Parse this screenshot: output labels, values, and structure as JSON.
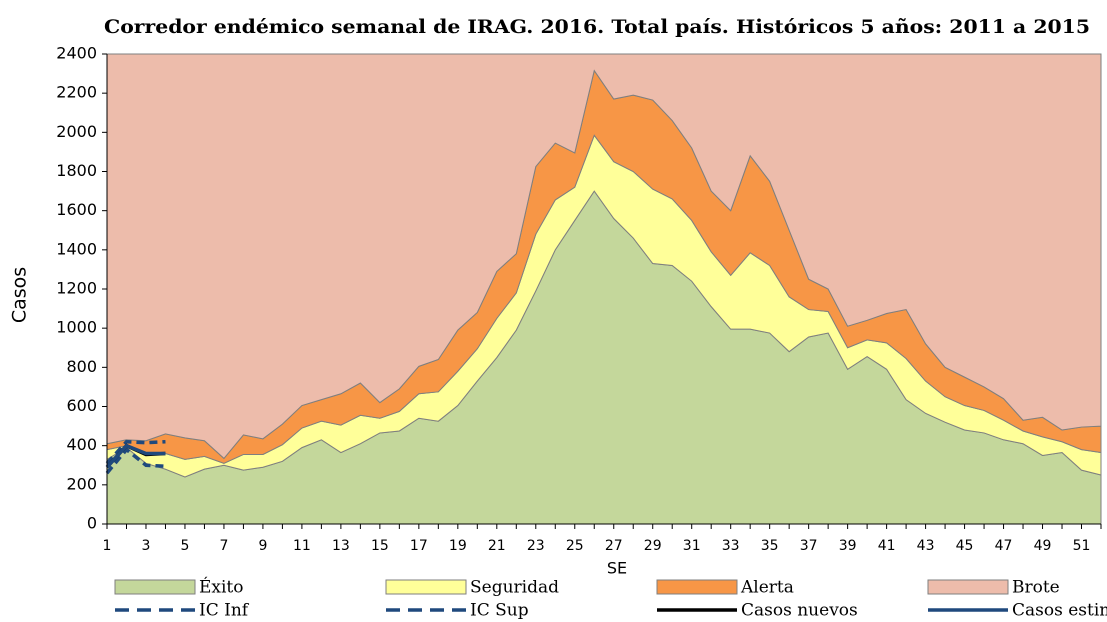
{
  "chart_data": {
    "type": "stacked_area",
    "title": "Corredor endémico semanal de IRAG. 2016. Total país. Históricos 5 años: 2011 a 2015",
    "x_label": "SE",
    "y_label": "Casos",
    "categories": [
      1,
      null,
      3,
      null,
      5,
      null,
      7,
      null,
      9,
      null,
      11,
      null,
      13,
      null,
      15,
      null,
      17,
      null,
      19,
      null,
      21,
      null,
      23,
      null,
      25,
      null,
      27,
      null,
      29,
      null,
      31,
      null,
      33,
      null,
      35,
      null,
      37,
      null,
      39,
      null,
      41,
      null,
      43,
      null,
      45,
      null,
      47,
      null,
      49,
      null,
      51,
      null
    ],
    "ylim": [
      0,
      2400
    ],
    "yticks": [
      0,
      200,
      400,
      600,
      800,
      1000,
      1200,
      1400,
      1600,
      1800,
      2000,
      2200,
      2400
    ],
    "series": [
      {
        "name": "Éxito",
        "color": "#c4d79b",
        "kind": "area",
        "values": [
          330,
          390,
          310,
          280,
          240,
          280,
          300,
          275,
          290,
          320,
          390,
          430,
          365,
          410,
          465,
          475,
          540,
          525,
          605,
          730,
          850,
          990,
          1190,
          1400,
          1550,
          1700,
          1560,
          1460,
          1330,
          1320,
          1240,
          1110,
          995,
          995,
          975,
          880,
          955,
          975,
          790,
          855,
          790,
          635,
          565,
          520,
          480,
          465,
          430,
          410,
          350,
          365,
          275,
          250
        ]
      },
      {
        "name": "Seguridad",
        "color": "#ffff99",
        "kind": "area",
        "values": [
          50,
          10,
          50,
          80,
          90,
          65,
          10,
          80,
          65,
          85,
          100,
          95,
          140,
          145,
          75,
          100,
          125,
          150,
          175,
          165,
          200,
          190,
          290,
          255,
          170,
          285,
          290,
          340,
          380,
          340,
          310,
          280,
          275,
          390,
          345,
          280,
          140,
          110,
          110,
          85,
          135,
          210,
          165,
          130,
          125,
          115,
          100,
          65,
          95,
          55,
          105,
          115
        ]
      },
      {
        "name": "Alerta",
        "color": "#f79646",
        "kind": "area",
        "values": [
          30,
          30,
          65,
          100,
          110,
          80,
          25,
          100,
          80,
          105,
          115,
          110,
          160,
          165,
          80,
          115,
          140,
          165,
          210,
          185,
          240,
          200,
          345,
          290,
          175,
          330,
          320,
          390,
          455,
          400,
          370,
          310,
          330,
          495,
          430,
          340,
          155,
          115,
          110,
          100,
          150,
          250,
          190,
          150,
          145,
          120,
          110,
          55,
          100,
          60,
          115,
          135
        ]
      },
      {
        "name": "Brote",
        "color": "#edbcab",
        "kind": "area",
        "values": [
          1990,
          1970,
          1975,
          1940,
          1960,
          1975,
          2065,
          1945,
          1965,
          1890,
          1795,
          1765,
          1735,
          1680,
          1780,
          1710,
          1595,
          1560,
          1410,
          1320,
          1110,
          1020,
          575,
          455,
          505,
          85,
          230,
          210,
          235,
          340,
          480,
          700,
          800,
          520,
          650,
          900,
          1150,
          1200,
          1390,
          1360,
          1325,
          1305,
          1480,
          1600,
          1650,
          1700,
          1760,
          1870,
          1855,
          1920,
          1905,
          1900
        ]
      },
      {
        "name": "IC Inf",
        "color": "#1f497d",
        "kind": "line",
        "style": "dashed",
        "values": [
          260,
          380,
          300,
          295,
          null,
          null,
          null,
          null,
          null,
          null,
          null,
          null,
          null,
          null,
          null,
          null,
          null,
          null,
          null,
          null,
          null,
          null,
          null,
          null,
          null,
          null,
          null,
          null,
          null,
          null,
          null,
          null,
          null,
          null,
          null,
          null,
          null,
          null,
          null,
          null,
          null,
          null,
          null,
          null,
          null,
          null,
          null,
          null,
          null,
          null,
          null,
          null
        ]
      },
      {
        "name": "IC Sup",
        "color": "#1f497d",
        "kind": "line",
        "style": "dashed",
        "values": [
          310,
          420,
          415,
          420,
          null,
          null,
          null,
          null,
          null,
          null,
          null,
          null,
          null,
          null,
          null,
          null,
          null,
          null,
          null,
          null,
          null,
          null,
          null,
          null,
          null,
          null,
          null,
          null,
          null,
          null,
          null,
          null,
          null,
          null,
          null,
          null,
          null,
          null,
          null,
          null,
          null,
          null,
          null,
          null,
          null,
          null,
          null,
          null,
          null,
          null,
          null,
          null
        ]
      },
      {
        "name": "Casos nuevos",
        "color": "#000000",
        "kind": "line",
        "style": "solid",
        "values": [
          290,
          400,
          355,
          360,
          null,
          null,
          null,
          null,
          null,
          null,
          null,
          null,
          null,
          null,
          null,
          null,
          null,
          null,
          null,
          null,
          null,
          null,
          null,
          null,
          null,
          null,
          null,
          null,
          null,
          null,
          null,
          null,
          null,
          null,
          null,
          null,
          null,
          null,
          null,
          null,
          null,
          null,
          null,
          null,
          null,
          null,
          null,
          null,
          null,
          null,
          null,
          null
        ]
      },
      {
        "name": "Casos estimados",
        "color": "#1f497d",
        "kind": "line",
        "style": "solid",
        "values": [
          290,
          400,
          360,
          360,
          null,
          null,
          null,
          null,
          null,
          null,
          null,
          null,
          null,
          null,
          null,
          null,
          null,
          null,
          null,
          null,
          null,
          null,
          null,
          null,
          null,
          null,
          null,
          null,
          null,
          null,
          null,
          null,
          null,
          null,
          null,
          null,
          null,
          null,
          null,
          null,
          null,
          null,
          null,
          null,
          null,
          null,
          null,
          null,
          null,
          null,
          null,
          null
        ]
      }
    ]
  }
}
